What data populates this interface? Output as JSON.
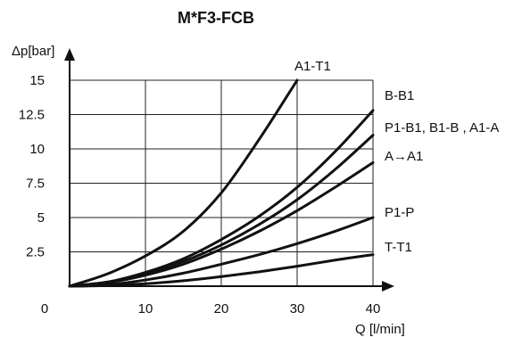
{
  "chart_data": {
    "type": "line",
    "title": "M*F3-FCB",
    "xlabel": "Q [l/min]",
    "ylabel": "Δp[bar]",
    "xlim": [
      0,
      40
    ],
    "ylim": [
      0,
      15
    ],
    "x_ticks": [
      "0",
      "10",
      "20",
      "30",
      "40"
    ],
    "y_ticks": [
      "2.5",
      "5",
      "7.5",
      "10",
      "12.5",
      "15"
    ],
    "grid": true,
    "x": [
      0,
      5,
      10,
      15,
      20,
      25,
      30,
      35,
      40
    ],
    "series": [
      {
        "name": "A1-T1",
        "values": [
          0,
          0.9,
          2.2,
          4.0,
          6.8,
          10.7,
          15.0,
          null,
          null
        ]
      },
      {
        "name": "B-B1",
        "values": [
          0,
          0.3,
          1.0,
          2.0,
          3.4,
          5.1,
          7.2,
          9.8,
          12.8
        ]
      },
      {
        "name": "P1-B1, B1-B , A1-A",
        "values": [
          0,
          0.3,
          0.9,
          1.8,
          3.0,
          4.5,
          6.3,
          8.5,
          11.0
        ]
      },
      {
        "name": "A→A1",
        "values": [
          0,
          0.25,
          0.8,
          1.6,
          2.7,
          4.0,
          5.5,
          7.2,
          9.0
        ]
      },
      {
        "name": "P1-P",
        "values": [
          0,
          0.1,
          0.45,
          0.95,
          1.6,
          2.3,
          3.1,
          4.0,
          5.0
        ]
      },
      {
        "name": "T-T1",
        "values": [
          0,
          0.05,
          0.18,
          0.4,
          0.7,
          1.05,
          1.45,
          1.9,
          2.3
        ]
      }
    ]
  }
}
